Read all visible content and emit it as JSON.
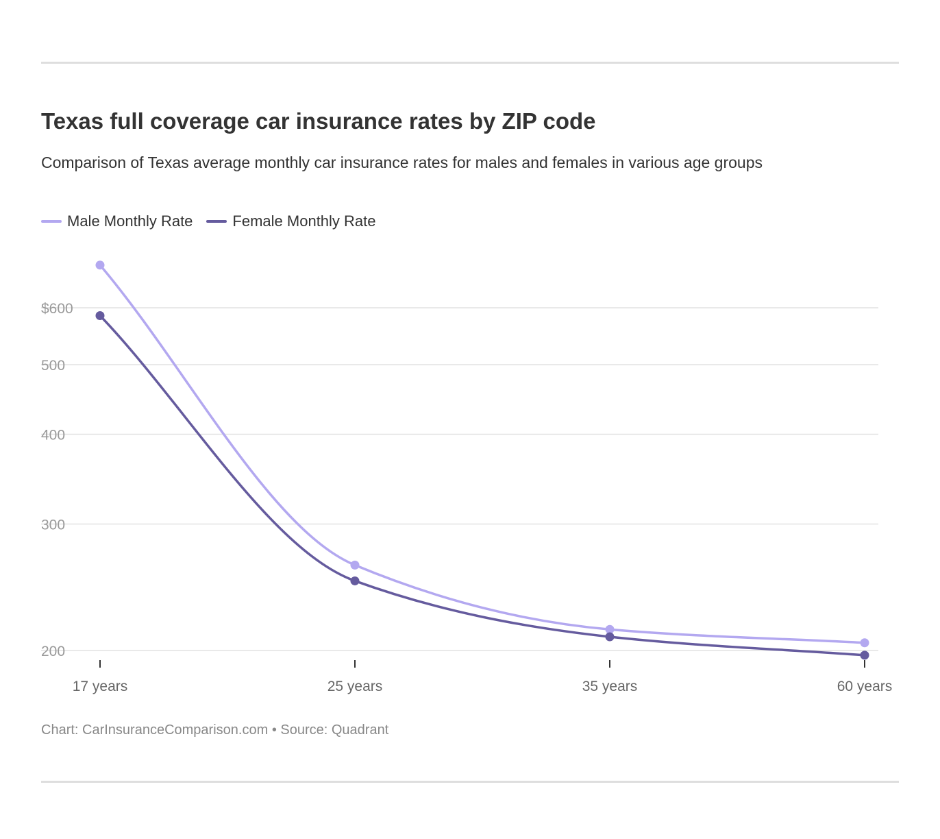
{
  "header": {
    "title": "Texas full coverage car insurance rates by ZIP code",
    "subtitle": "Comparison of Texas average monthly car insurance rates for males and females in various age groups"
  },
  "legend": {
    "items": [
      {
        "label": "Male Monthly Rate",
        "color": "#b3a8f0"
      },
      {
        "label": "Female Monthly Rate",
        "color": "#655b9e"
      }
    ]
  },
  "footer": {
    "chart_credit": "Chart: CarInsuranceComparison.com",
    "separator": "•",
    "source": "Source: Quadrant"
  },
  "chart_data": {
    "type": "line",
    "categories": [
      "17 years",
      "25 years",
      "35 years",
      "60 years"
    ],
    "series": [
      {
        "name": "Male Monthly Rate",
        "color": "#b3a8f0",
        "values": [
          688,
          263,
          214,
          205
        ]
      },
      {
        "name": "Female Monthly Rate",
        "color": "#655b9e",
        "values": [
          585,
          250,
          209,
          197
        ]
      }
    ],
    "y_scale": "log",
    "y_ticks": [
      200,
      300,
      400,
      500,
      600
    ],
    "y_tick_labels": [
      "200",
      "300",
      "400",
      "500",
      "$600"
    ],
    "grid": true,
    "legend_position": "top-left"
  }
}
